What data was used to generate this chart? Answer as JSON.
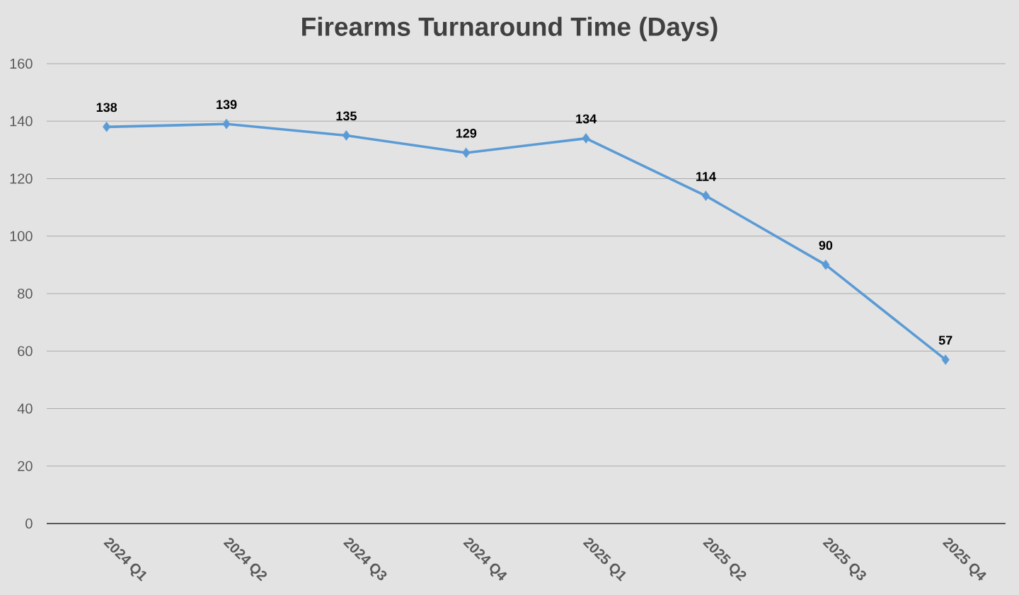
{
  "chart_data": {
    "type": "line",
    "title": "Firearms Turnaround Time (Days)",
    "categories": [
      "2024 Q1",
      "2024 Q2",
      "2024 Q3",
      "2024 Q4",
      "2025 Q1",
      "2025 Q2",
      "2025 Q3",
      "2025 Q4"
    ],
    "values": [
      138,
      139,
      135,
      129,
      134,
      114,
      90,
      57
    ],
    "color": "#5b9bd5",
    "ylim": [
      0,
      160
    ],
    "yticks": [
      0,
      20,
      40,
      60,
      80,
      100,
      120,
      140,
      160
    ],
    "grid": "y",
    "marker": "diamond",
    "data_labels": true
  }
}
